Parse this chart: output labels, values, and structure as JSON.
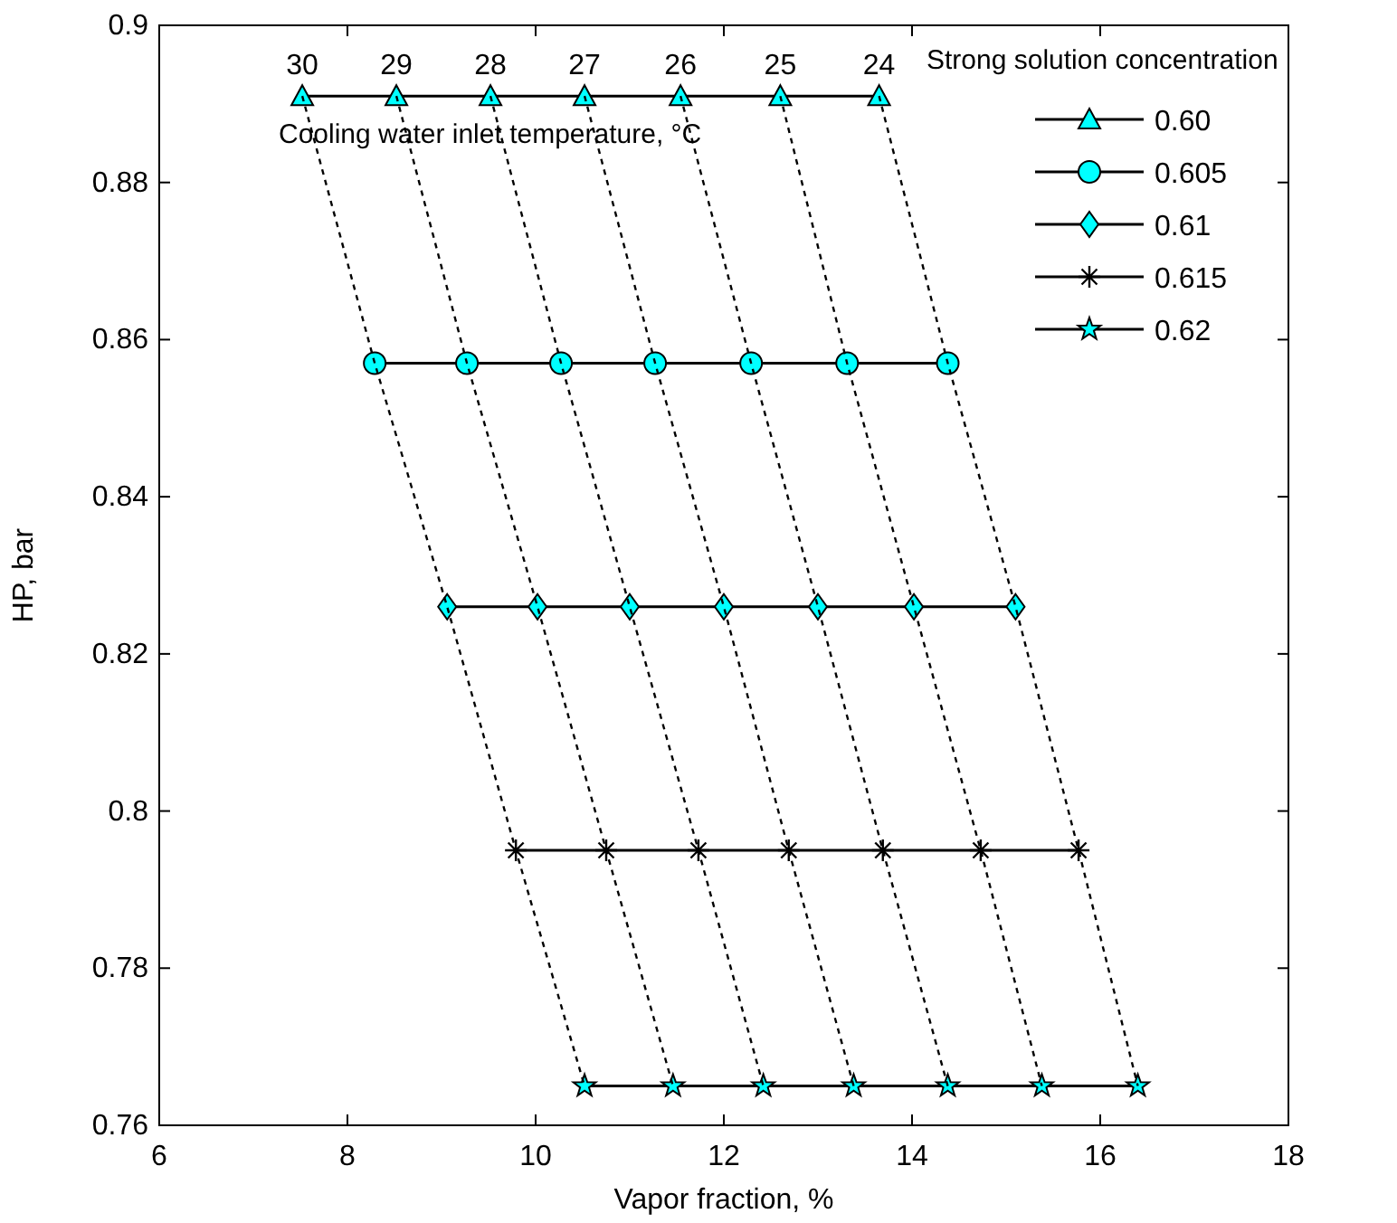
{
  "chart_data": {
    "type": "line",
    "xlabel": "Vapor fraction, %",
    "ylabel": "HP, bar",
    "legend_title": "Strong solution concentration",
    "legend": "top right",
    "grid": false,
    "xlim": [
      6,
      18
    ],
    "xticks": [
      6,
      8,
      10,
      12,
      14,
      16,
      18
    ],
    "ylim": [
      0.76,
      0.9
    ],
    "yticks": [
      0.76,
      0.78,
      0.8,
      0.82,
      0.84,
      0.86,
      0.88,
      0.9
    ],
    "series": [
      {
        "name": "0.60",
        "color": "#00ffff",
        "marker": "triangle",
        "line_style": "solid",
        "x": [
          7.52,
          8.52,
          9.52,
          10.52,
          11.54,
          12.6,
          13.65
        ],
        "values": [
          0.891,
          0.891,
          0.891,
          0.891,
          0.891,
          0.891,
          0.891
        ]
      },
      {
        "name": "0.605",
        "color": "#00ffff",
        "marker": "circle",
        "line_style": "solid",
        "x": [
          8.29,
          9.27,
          10.27,
          11.27,
          12.29,
          13.31,
          14.38
        ],
        "values": [
          0.857,
          0.857,
          0.857,
          0.857,
          0.857,
          0.857,
          0.857
        ]
      },
      {
        "name": "0.61",
        "color": "#00ffff",
        "marker": "diamond",
        "line_style": "solid",
        "x": [
          9.06,
          10.02,
          11.0,
          12.0,
          13.0,
          14.02,
          15.1
        ],
        "values": [
          0.826,
          0.826,
          0.826,
          0.826,
          0.826,
          0.826,
          0.826
        ]
      },
      {
        "name": "0.615",
        "color": "#000000",
        "marker": "cross",
        "line_style": "solid",
        "x": [
          9.79,
          10.75,
          11.73,
          12.69,
          13.69,
          14.73,
          15.77
        ],
        "values": [
          0.795,
          0.795,
          0.795,
          0.795,
          0.795,
          0.795,
          0.795
        ]
      },
      {
        "name": "0.62",
        "color": "#00ffff",
        "marker": "star",
        "line_style": "solid",
        "x": [
          10.52,
          11.46,
          12.42,
          13.38,
          14.38,
          15.38,
          16.4
        ],
        "values": [
          0.765,
          0.765,
          0.765,
          0.765,
          0.765,
          0.765,
          0.765
        ]
      },
      {
        "color": "#000000",
        "marker": "none",
        "line_style": "dashed",
        "x": [
          7.52,
          8.29,
          9.06,
          9.79,
          10.52
        ],
        "values": [
          0.891,
          0.857,
          0.826,
          0.795,
          0.765
        ]
      },
      {
        "color": "#000000",
        "marker": "none",
        "line_style": "dashed",
        "x": [
          8.52,
          9.27,
          10.02,
          10.75,
          11.46
        ],
        "values": [
          0.891,
          0.857,
          0.826,
          0.795,
          0.765
        ]
      },
      {
        "color": "#000000",
        "marker": "none",
        "line_style": "dashed",
        "x": [
          9.52,
          10.27,
          11.0,
          11.73,
          12.42
        ],
        "values": [
          0.891,
          0.857,
          0.826,
          0.795,
          0.765
        ]
      },
      {
        "color": "#000000",
        "marker": "none",
        "line_style": "dashed",
        "x": [
          10.52,
          11.27,
          12.0,
          12.69,
          13.38
        ],
        "values": [
          0.891,
          0.857,
          0.826,
          0.795,
          0.765
        ]
      },
      {
        "color": "#000000",
        "marker": "none",
        "line_style": "dashed",
        "x": [
          11.54,
          12.29,
          13.0,
          13.69,
          14.38
        ],
        "values": [
          0.891,
          0.857,
          0.826,
          0.795,
          0.765
        ]
      },
      {
        "color": "#000000",
        "marker": "none",
        "line_style": "dashed",
        "x": [
          12.6,
          13.31,
          14.02,
          14.73,
          15.38
        ],
        "values": [
          0.891,
          0.857,
          0.826,
          0.795,
          0.765
        ]
      },
      {
        "color": "#000000",
        "marker": "none",
        "line_style": "dashed",
        "x": [
          13.65,
          14.38,
          15.1,
          15.77,
          16.4
        ],
        "values": [
          0.891,
          0.857,
          0.826,
          0.795,
          0.765
        ]
      }
    ],
    "annotations": [
      {
        "text": "30",
        "x": 7.52,
        "y": 0.891
      },
      {
        "text": "29",
        "x": 8.52,
        "y": 0.891
      },
      {
        "text": "28",
        "x": 9.52,
        "y": 0.891
      },
      {
        "text": "27",
        "x": 10.52,
        "y": 0.891
      },
      {
        "text": "26",
        "x": 11.54,
        "y": 0.891
      },
      {
        "text": "25",
        "x": 12.6,
        "y": 0.891
      },
      {
        "text": "24",
        "x": 13.65,
        "y": 0.891
      },
      "Cooling water inlet temperature, °C"
    ]
  }
}
